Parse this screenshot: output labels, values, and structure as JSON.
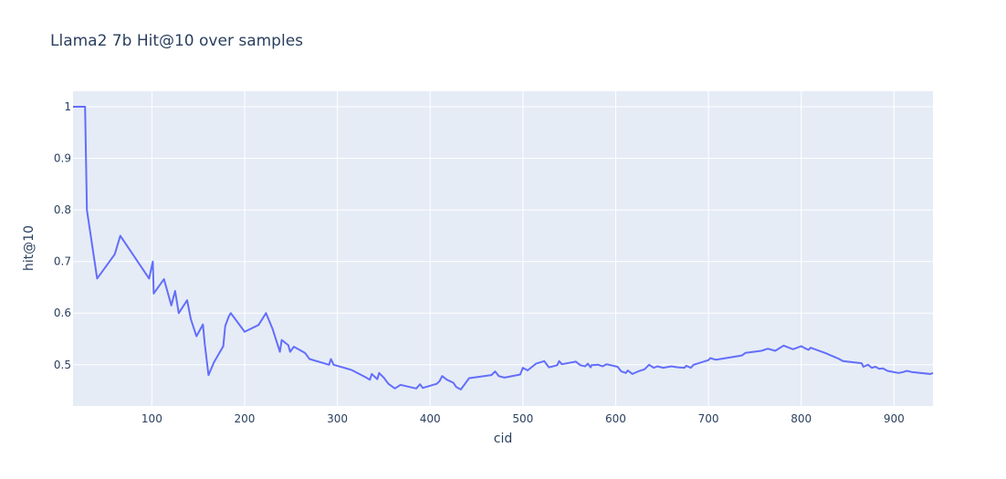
{
  "chart_data": {
    "type": "line",
    "title": "Llama2 7b Hit@10 over samples",
    "xlabel": "cid",
    "ylabel": "hit@10",
    "xlim": [
      15,
      942
    ],
    "ylim": [
      0.42,
      1.03
    ],
    "x_ticks": [
      100,
      200,
      300,
      400,
      500,
      600,
      700,
      800,
      900
    ],
    "y_ticks": [
      0.5,
      0.6,
      0.7,
      0.8,
      0.9,
      1
    ],
    "y_tick_labels": [
      "0.5",
      "0.6",
      "0.7",
      "0.8",
      "0.9",
      "1"
    ],
    "grid": true,
    "line_color": "#636efa",
    "plot_bg": "#e5ecf6",
    "series": [
      {
        "x": [
          15,
          28,
          30,
          41,
          60,
          66,
          97,
          101,
          102,
          113,
          121,
          125,
          129,
          138,
          142,
          148,
          155,
          157,
          161,
          167,
          177,
          179,
          183,
          185,
          200,
          215,
          223,
          230,
          238,
          240,
          247,
          249,
          253,
          265,
          270,
          291,
          293,
          296,
          315,
          330,
          335,
          337,
          343,
          345,
          350,
          355,
          362,
          368,
          385,
          389,
          392,
          407,
          410,
          413,
          418,
          425,
          428,
          433,
          442,
          466,
          470,
          474,
          480,
          497,
          500,
          505,
          514,
          523,
          528,
          537,
          539,
          542,
          557,
          562,
          567,
          570,
          573,
          574,
          581,
          586,
          590,
          602,
          606,
          611,
          613,
          618,
          624,
          631,
          636,
          641,
          645,
          651,
          660,
          667,
          674,
          676,
          681,
          684,
          700,
          702,
          707,
          709,
          736,
          740,
          757,
          764,
          772,
          781,
          791,
          800,
          805,
          808,
          810,
          827,
          832,
          840,
          845,
          865,
          867,
          872,
          876,
          880,
          884,
          888,
          893,
          905,
          910,
          914,
          919,
          939,
          942
        ],
        "y": [
          1.0,
          1.0,
          0.8,
          0.667,
          0.714,
          0.75,
          0.667,
          0.7,
          0.638,
          0.666,
          0.615,
          0.643,
          0.6,
          0.625,
          0.588,
          0.555,
          0.578,
          0.54,
          0.48,
          0.505,
          0.536,
          0.575,
          0.594,
          0.6,
          0.564,
          0.577,
          0.6,
          0.57,
          0.525,
          0.548,
          0.538,
          0.525,
          0.535,
          0.523,
          0.511,
          0.5,
          0.511,
          0.5,
          0.49,
          0.476,
          0.471,
          0.482,
          0.472,
          0.484,
          0.475,
          0.463,
          0.454,
          0.461,
          0.454,
          0.462,
          0.455,
          0.463,
          0.468,
          0.478,
          0.471,
          0.465,
          0.457,
          0.452,
          0.474,
          0.48,
          0.487,
          0.478,
          0.475,
          0.481,
          0.494,
          0.489,
          0.502,
          0.507,
          0.495,
          0.499,
          0.507,
          0.501,
          0.506,
          0.499,
          0.497,
          0.502,
          0.495,
          0.499,
          0.5,
          0.497,
          0.501,
          0.496,
          0.487,
          0.484,
          0.489,
          0.482,
          0.487,
          0.491,
          0.5,
          0.494,
          0.497,
          0.494,
          0.497,
          0.495,
          0.494,
          0.498,
          0.494,
          0.5,
          0.509,
          0.513,
          0.51,
          0.51,
          0.518,
          0.523,
          0.527,
          0.531,
          0.527,
          0.537,
          0.53,
          0.536,
          0.531,
          0.529,
          0.533,
          0.522,
          0.518,
          0.512,
          0.507,
          0.503,
          0.496,
          0.5,
          0.494,
          0.496,
          0.492,
          0.493,
          0.488,
          0.484,
          0.486,
          0.488,
          0.486,
          0.482,
          0.484
        ]
      }
    ]
  }
}
